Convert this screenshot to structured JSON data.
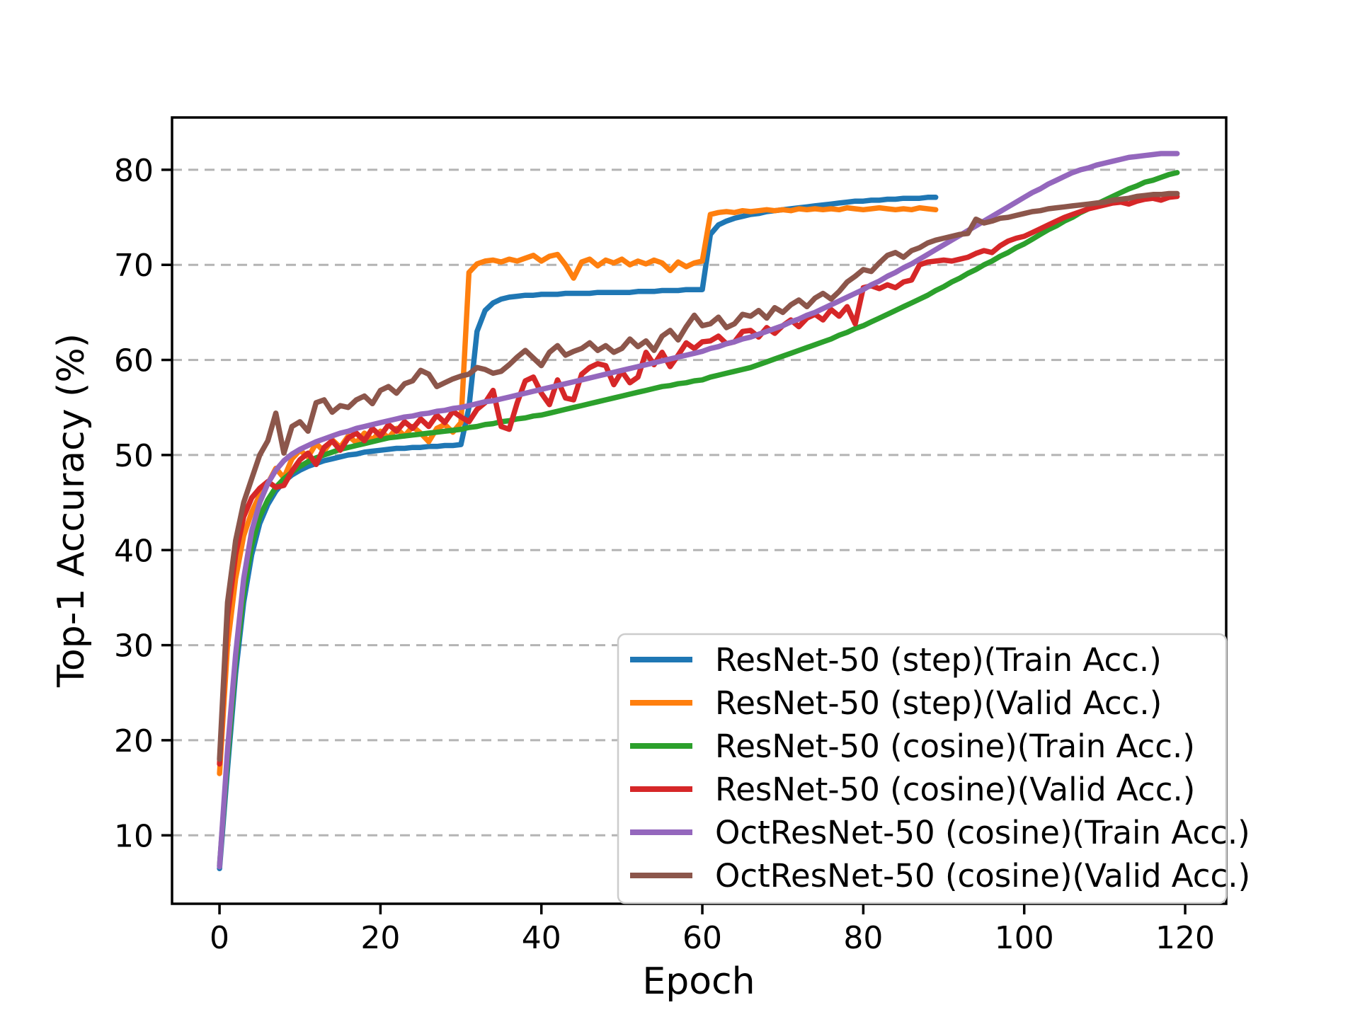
{
  "chart_data": {
    "type": "line",
    "title": "",
    "xlabel": "Epoch",
    "ylabel": "Top-1 Accuracy (%)",
    "xlim": [
      -5.9,
      125.1
    ],
    "ylim": [
      2.8,
      85.5
    ],
    "xticks": [
      0,
      20,
      40,
      60,
      80,
      100,
      120
    ],
    "yticks": [
      10,
      20,
      30,
      40,
      50,
      60,
      70,
      80
    ],
    "grid": {
      "axis": "y",
      "style": "dashed",
      "color": "#b4b4b4"
    },
    "legend": {
      "position": "lower-right-inside",
      "border_color": "#cccccc"
    },
    "x_step_per_point": 1,
    "series": [
      {
        "name": "ResNet-50 (step)(Train Acc.)",
        "color": "#1f77b4",
        "x_start": 0,
        "values": [
          6.5,
          17.0,
          27.0,
          34.5,
          39.5,
          42.8,
          44.8,
          46.2,
          47.2,
          47.9,
          48.4,
          48.8,
          49.1,
          49.4,
          49.6,
          49.8,
          50.0,
          50.1,
          50.3,
          50.4,
          50.5,
          50.6,
          50.7,
          50.7,
          50.8,
          50.8,
          50.9,
          50.9,
          51.0,
          51.0,
          51.1,
          55.0,
          63.0,
          65.2,
          66.0,
          66.4,
          66.6,
          66.7,
          66.8,
          66.8,
          66.9,
          66.9,
          66.9,
          67.0,
          67.0,
          67.0,
          67.0,
          67.1,
          67.1,
          67.1,
          67.1,
          67.1,
          67.2,
          67.2,
          67.2,
          67.3,
          67.3,
          67.3,
          67.4,
          67.4,
          67.4,
          73.2,
          74.2,
          74.6,
          74.9,
          75.1,
          75.3,
          75.4,
          75.6,
          75.7,
          75.8,
          75.9,
          76.0,
          76.1,
          76.2,
          76.3,
          76.4,
          76.5,
          76.6,
          76.7,
          76.7,
          76.8,
          76.8,
          76.9,
          76.9,
          77.0,
          77.0,
          77.0,
          77.1,
          77.1
        ]
      },
      {
        "name": "ResNet-50 (step)(Valid Acc.)",
        "color": "#ff7f0e",
        "x_start": 0,
        "values": [
          16.5,
          30.0,
          37.0,
          41.5,
          44.0,
          45.8,
          47.0,
          48.6,
          47.6,
          49.6,
          50.5,
          49.8,
          51.2,
          50.4,
          51.6,
          50.8,
          52.0,
          51.3,
          52.3,
          51.6,
          52.5,
          51.8,
          52.8,
          52.0,
          53.0,
          52.3,
          51.4,
          52.8,
          53.2,
          52.4,
          53.4,
          69.2,
          70.1,
          70.4,
          70.5,
          70.3,
          70.6,
          70.4,
          70.7,
          71.0,
          70.4,
          70.9,
          71.1,
          70.0,
          68.6,
          70.3,
          70.6,
          69.9,
          70.5,
          70.2,
          70.6,
          70.0,
          70.4,
          70.1,
          70.5,
          70.2,
          69.4,
          70.3,
          69.8,
          70.2,
          70.4,
          75.3,
          75.5,
          75.6,
          75.5,
          75.7,
          75.6,
          75.7,
          75.8,
          75.7,
          75.8,
          75.7,
          75.9,
          75.8,
          75.9,
          75.8,
          75.9,
          75.8,
          76.0,
          75.9,
          75.8,
          75.9,
          76.0,
          75.9,
          75.8,
          75.9,
          75.8,
          76.0,
          75.9,
          75.8
        ]
      },
      {
        "name": "ResNet-50 (cosine)(Train Acc.)",
        "color": "#2ca02c",
        "x_start": 0,
        "values": [
          6.8,
          18.0,
          28.0,
          35.5,
          40.5,
          43.5,
          45.3,
          46.6,
          47.5,
          48.2,
          48.8,
          49.3,
          49.7,
          50.0,
          50.3,
          50.6,
          50.8,
          51.0,
          51.2,
          51.4,
          51.6,
          51.8,
          51.9,
          52.0,
          52.1,
          52.2,
          52.3,
          52.4,
          52.5,
          52.6,
          52.7,
          52.9,
          53.0,
          53.2,
          53.3,
          53.5,
          53.6,
          53.8,
          53.9,
          54.1,
          54.2,
          54.4,
          54.6,
          54.8,
          55.0,
          55.2,
          55.4,
          55.6,
          55.8,
          56.0,
          56.2,
          56.4,
          56.6,
          56.8,
          57.0,
          57.2,
          57.3,
          57.5,
          57.6,
          57.8,
          57.9,
          58.2,
          58.4,
          58.6,
          58.8,
          59.0,
          59.2,
          59.5,
          59.8,
          60.1,
          60.4,
          60.7,
          61.0,
          61.3,
          61.6,
          61.9,
          62.2,
          62.6,
          62.9,
          63.3,
          63.6,
          64.0,
          64.4,
          64.8,
          65.2,
          65.6,
          66.0,
          66.4,
          66.8,
          67.3,
          67.7,
          68.2,
          68.6,
          69.1,
          69.5,
          70.0,
          70.4,
          70.9,
          71.3,
          71.8,
          72.2,
          72.7,
          73.2,
          73.7,
          74.1,
          74.6,
          75.0,
          75.5,
          75.9,
          76.4,
          76.8,
          77.2,
          77.6,
          78.0,
          78.3,
          78.7,
          78.9,
          79.2,
          79.5,
          79.7
        ]
      },
      {
        "name": "ResNet-50 (cosine)(Valid Acc.)",
        "color": "#d62728",
        "x_start": 0,
        "values": [
          17.5,
          33.0,
          39.5,
          43.5,
          45.5,
          46.5,
          47.2,
          46.6,
          46.8,
          48.3,
          49.5,
          50.2,
          49.0,
          50.8,
          51.5,
          50.5,
          51.8,
          52.3,
          51.5,
          52.8,
          52.0,
          53.2,
          52.5,
          53.5,
          52.8,
          53.8,
          53.0,
          54.2,
          53.4,
          54.6,
          54.0,
          53.5,
          54.8,
          55.5,
          56.8,
          53.0,
          52.7,
          55.5,
          57.8,
          58.2,
          56.5,
          55.3,
          57.9,
          56.0,
          55.8,
          58.5,
          59.2,
          59.6,
          59.4,
          57.4,
          58.8,
          57.6,
          58.2,
          60.8,
          59.5,
          60.8,
          59.3,
          60.5,
          61.8,
          61.2,
          61.9,
          62.0,
          62.5,
          61.7,
          61.9,
          63.0,
          63.1,
          62.4,
          63.4,
          62.8,
          63.6,
          64.2,
          63.5,
          64.4,
          64.8,
          64.2,
          65.3,
          64.6,
          65.6,
          63.8,
          67.6,
          67.8,
          67.5,
          67.9,
          67.6,
          68.2,
          68.4,
          70.0,
          70.3,
          70.4,
          70.5,
          70.4,
          70.6,
          70.8,
          71.2,
          71.5,
          71.3,
          72.0,
          72.5,
          72.8,
          73.0,
          73.4,
          73.8,
          74.2,
          74.6,
          75.0,
          75.3,
          75.6,
          75.9,
          76.1,
          76.3,
          76.5,
          76.6,
          76.4,
          76.7,
          76.9,
          77.0,
          76.8,
          77.1,
          77.2
        ]
      },
      {
        "name": "OctResNet-50 (cosine)(Train Acc.)",
        "color": "#9467bd",
        "x_start": 0,
        "values": [
          6.7,
          19.0,
          29.0,
          37.0,
          42.0,
          45.0,
          47.0,
          48.4,
          49.4,
          50.1,
          50.6,
          51.0,
          51.4,
          51.7,
          52.0,
          52.3,
          52.5,
          52.8,
          53.0,
          53.2,
          53.4,
          53.6,
          53.8,
          54.0,
          54.1,
          54.3,
          54.4,
          54.6,
          54.7,
          54.9,
          55.0,
          55.2,
          55.4,
          55.6,
          55.7,
          55.9,
          56.1,
          56.3,
          56.5,
          56.7,
          56.9,
          57.1,
          57.3,
          57.5,
          57.7,
          57.9,
          58.1,
          58.3,
          58.5,
          58.7,
          58.9,
          59.1,
          59.3,
          59.5,
          59.7,
          59.9,
          60.1,
          60.3,
          60.5,
          60.7,
          60.9,
          61.2,
          61.4,
          61.7,
          61.9,
          62.2,
          62.4,
          62.7,
          63.0,
          63.3,
          63.6,
          64.0,
          64.3,
          64.7,
          65.0,
          65.4,
          65.8,
          66.2,
          66.6,
          67.0,
          67.4,
          67.9,
          68.3,
          68.8,
          69.2,
          69.7,
          70.1,
          70.6,
          71.1,
          71.6,
          72.1,
          72.6,
          73.1,
          73.6,
          74.1,
          74.6,
          75.1,
          75.6,
          76.1,
          76.6,
          77.1,
          77.6,
          78.0,
          78.5,
          78.9,
          79.3,
          79.7,
          80.0,
          80.2,
          80.5,
          80.7,
          80.9,
          81.1,
          81.3,
          81.4,
          81.5,
          81.6,
          81.7,
          81.7,
          81.7
        ]
      },
      {
        "name": "OctResNet-50 (cosine)(Valid Acc.)",
        "color": "#8c564b",
        "x_start": 0,
        "values": [
          18.0,
          34.5,
          41.0,
          45.0,
          47.5,
          50.0,
          51.5,
          54.4,
          50.2,
          53.0,
          53.5,
          52.5,
          55.5,
          55.8,
          54.5,
          55.2,
          55.0,
          55.8,
          56.2,
          55.4,
          56.8,
          57.2,
          56.5,
          57.5,
          57.8,
          58.9,
          58.5,
          57.2,
          57.6,
          58.0,
          58.3,
          58.5,
          59.2,
          59.0,
          58.6,
          58.8,
          59.5,
          60.3,
          61.0,
          60.2,
          59.4,
          60.8,
          61.5,
          60.5,
          60.9,
          61.2,
          61.8,
          61.0,
          61.5,
          60.8,
          61.2,
          62.2,
          61.4,
          62.0,
          61.0,
          62.5,
          63.1,
          62.1,
          63.5,
          64.7,
          63.6,
          63.8,
          64.5,
          63.4,
          63.8,
          64.8,
          64.6,
          65.2,
          64.4,
          65.5,
          65.0,
          65.8,
          66.3,
          65.6,
          66.5,
          67.0,
          66.4,
          67.2,
          68.2,
          68.8,
          69.5,
          69.3,
          70.2,
          71.0,
          71.3,
          70.8,
          71.5,
          71.8,
          72.3,
          72.6,
          72.8,
          73.0,
          73.2,
          73.3,
          74.8,
          74.4,
          74.6,
          74.9,
          75.0,
          75.2,
          75.4,
          75.6,
          75.7,
          75.9,
          76.0,
          76.1,
          76.2,
          76.3,
          76.4,
          76.5,
          76.6,
          76.8,
          76.9,
          77.0,
          77.2,
          77.3,
          77.4,
          77.4,
          77.5,
          77.5
        ]
      }
    ]
  }
}
